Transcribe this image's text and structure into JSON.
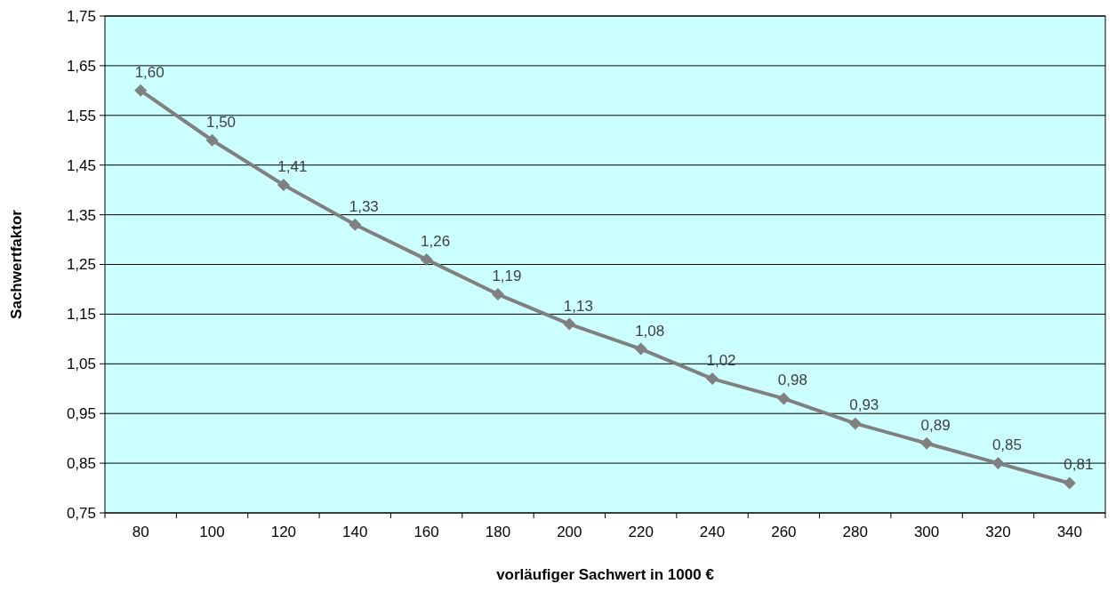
{
  "chart_data": {
    "type": "line",
    "xlabel": "vorläufiger  Sachwert  in 1000  €",
    "ylabel": "Sachwertfaktor",
    "categories": [
      "80",
      "100",
      "120",
      "140",
      "160",
      "180",
      "200",
      "220",
      "240",
      "260",
      "280",
      "300",
      "320",
      "340"
    ],
    "series": [
      {
        "color": "#808080",
        "values": [
          1.6,
          1.5,
          1.41,
          1.33,
          1.26,
          1.19,
          1.13,
          1.08,
          1.02,
          0.98,
          0.93,
          0.89,
          0.85,
          0.81
        ],
        "value_labels": [
          "1,60",
          "1,50",
          "1,41",
          "1,33",
          "1,26",
          "1,19",
          "1,13",
          "1,08",
          "1,02",
          "0,98",
          "0,93",
          "0,89",
          "0,85",
          "0,81"
        ]
      }
    ],
    "ylim": [
      0.75,
      1.75
    ],
    "yticks": [
      {
        "value": 0.75,
        "label": "0,75"
      },
      {
        "value": 0.85,
        "label": "0,85"
      },
      {
        "value": 0.95,
        "label": "0,95"
      },
      {
        "value": 1.05,
        "label": "1,05"
      },
      {
        "value": 1.15,
        "label": "1,15"
      },
      {
        "value": 1.25,
        "label": "1,25"
      },
      {
        "value": 1.35,
        "label": "1,35"
      },
      {
        "value": 1.45,
        "label": "1,45"
      },
      {
        "value": 1.55,
        "label": "1,55"
      },
      {
        "value": 1.65,
        "label": "1,65"
      },
      {
        "value": 1.75,
        "label": "1,75"
      }
    ],
    "grid": "y",
    "marker": "diamond",
    "line_style": "solid"
  }
}
